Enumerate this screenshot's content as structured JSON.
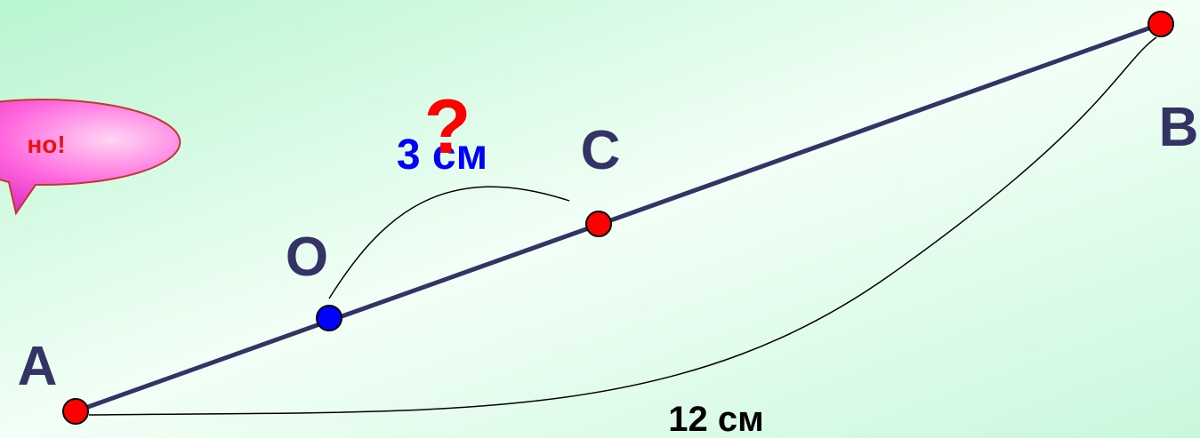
{
  "points": [
    {
      "label": "A"
    },
    {
      "label": "O"
    },
    {
      "label": "C"
    },
    {
      "label": "B"
    }
  ],
  "segments": {
    "oc": "3 см",
    "ab": "12 см"
  },
  "question": "?",
  "bubble": {
    "text": "но!"
  }
}
